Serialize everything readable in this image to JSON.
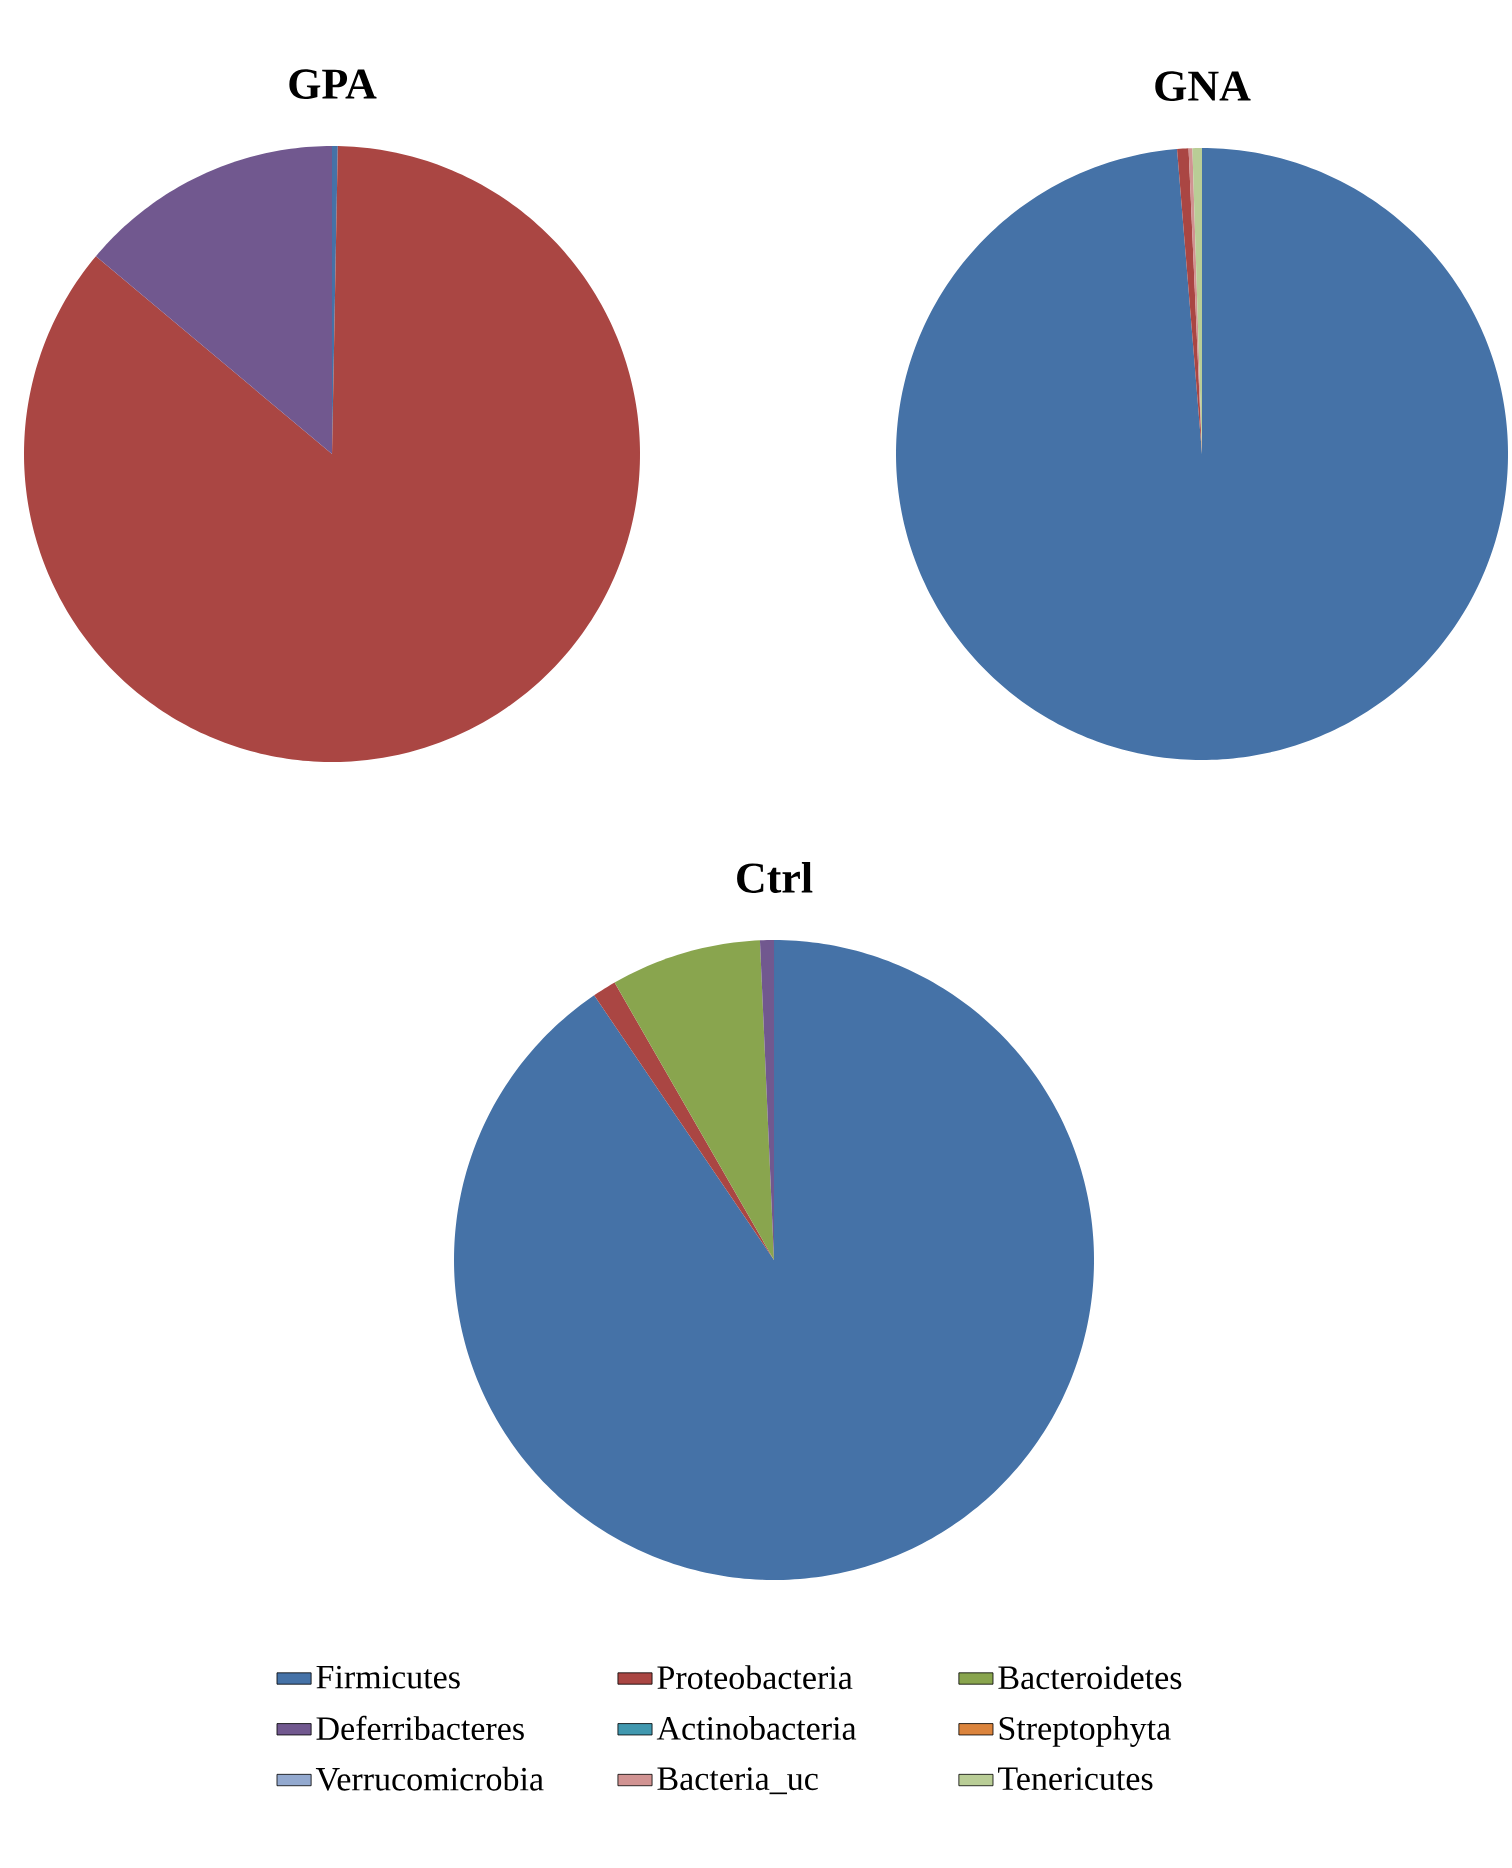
{
  "chart_data": [
    {
      "type": "pie",
      "title": "GPA",
      "categories": [
        null,
        null,
        null,
        null,
        null,
        null,
        null,
        null,
        null
      ],
      "values": [
        0.3,
        85.8,
        0,
        13.9,
        0,
        0,
        0,
        0,
        0
      ],
      "colors": [
        "#4572a7",
        "#aa4643",
        "#89a54e",
        "#71588f",
        "#4198af",
        "#db843d",
        "#93a9cf",
        "#d19392",
        "#b9cd96"
      ]
    },
    {
      "type": "pie",
      "title": "GNA",
      "categories": [
        null,
        null,
        null,
        null,
        null,
        null,
        null,
        null,
        null
      ],
      "values": [
        98.7,
        0.6,
        0,
        0,
        0,
        0,
        0,
        0.2,
        0.5
      ],
      "colors": [
        "#4572a7",
        "#aa4643",
        "#89a54e",
        "#71588f",
        "#4198af",
        "#db843d",
        "#93a9cf",
        "#d19392",
        "#b9cd96"
      ]
    },
    {
      "type": "pie",
      "title": "Ctrl",
      "categories": [
        "Firmicutes",
        "Proteobacteria",
        "Bacteroidetes",
        "Deferribacteres",
        "Actinobacteria",
        "Streptophyta",
        "Verrucomicrobia",
        "Bacteria_uc",
        "Tenericutes"
      ],
      "values": [
        90.5,
        1.2,
        7.6,
        0.7,
        0,
        0,
        0,
        0,
        0
      ],
      "colors": [
        "#4572a7",
        "#aa4643",
        "#89a54e",
        "#71588f",
        "#4198af",
        "#db843d",
        "#93a9cf",
        "#d19392",
        "#b9cd96"
      ],
      "legend": "bottom"
    }
  ]
}
